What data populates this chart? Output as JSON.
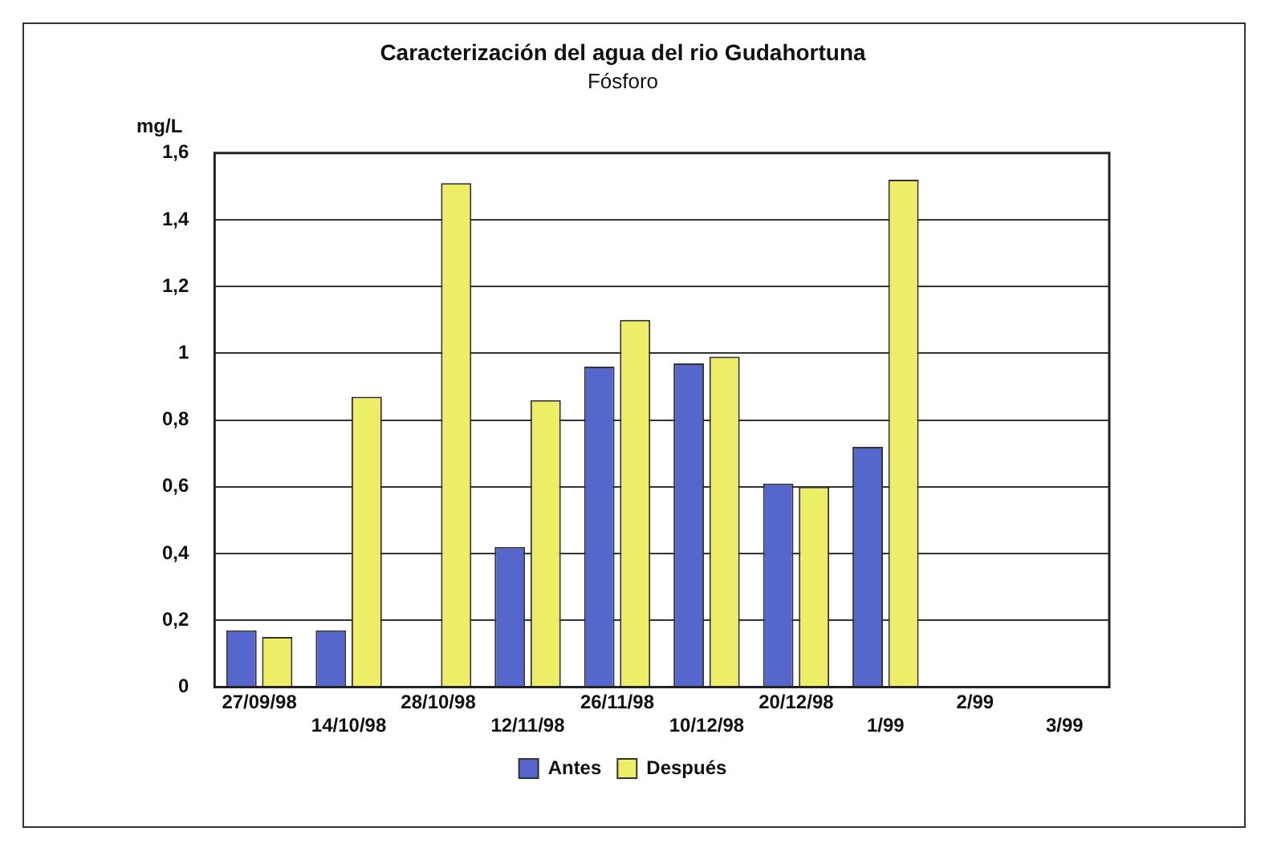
{
  "chart_data": {
    "type": "bar",
    "title": "Caracterización del agua del rio Gudahortuna",
    "subtitle": "Fósforo",
    "ylabel": "mg/L",
    "categories": [
      "27/09/98",
      "14/10/98",
      "28/10/98",
      "12/11/98",
      "26/11/98",
      "10/12/98",
      "20/12/98",
      "1/99",
      "2/99",
      "3/99"
    ],
    "series": [
      {
        "name": "Antes",
        "color": "#5566cc",
        "values": [
          0.17,
          0.17,
          0,
          0.42,
          0.96,
          0.97,
          0.61,
          0.72,
          null,
          null
        ]
      },
      {
        "name": "Después",
        "color": "#eeee66",
        "values": [
          0.15,
          0.87,
          1.51,
          0.86,
          1.1,
          0.99,
          0.6,
          1.52,
          null,
          null
        ]
      }
    ],
    "ylim": [
      0,
      1.6
    ],
    "yticks": [
      0,
      {
        "value": 0.2,
        "label": "0,2"
      },
      {
        "value": 0.4,
        "label": "0,4"
      },
      {
        "value": 0.6,
        "label": "0,6"
      },
      {
        "value": 0.8,
        "label": "0,8"
      },
      1,
      {
        "value": 1.2,
        "label": "1,2"
      },
      {
        "value": 1.4,
        "label": "1,4"
      },
      {
        "value": 1.6,
        "label": "1,6"
      }
    ],
    "grid": "y",
    "legend": "bottom"
  }
}
